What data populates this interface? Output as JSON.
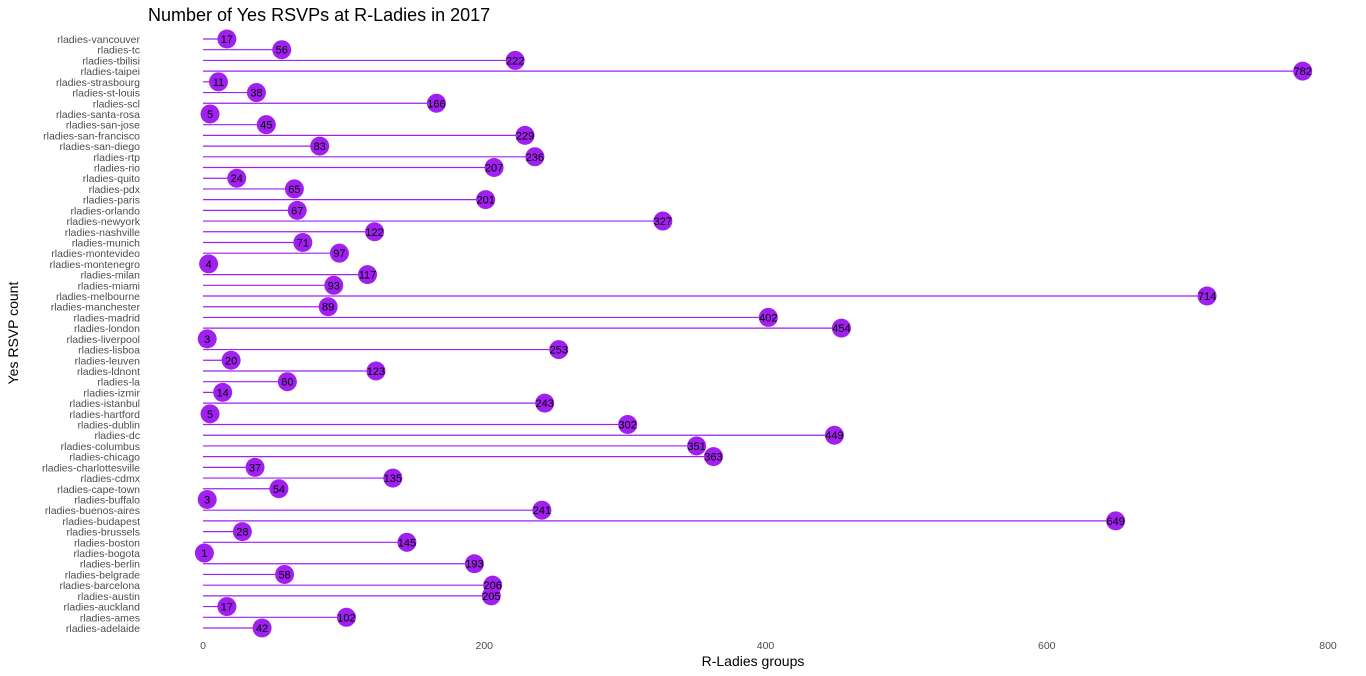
{
  "chart_data": {
    "type": "lollipop",
    "title": "Number of Yes RSVPs at R-Ladies in 2017",
    "xlabel": "R-Ladies groups",
    "ylabel": "Yes RSVP count",
    "xlim": [
      0,
      800
    ],
    "xticks": [
      "0",
      "200",
      "400",
      "600",
      "800"
    ],
    "xtick_values": [
      0,
      200,
      400,
      600,
      800
    ],
    "grid": false,
    "colors": {
      "stem": "#a020f0",
      "dot": "#a020f0",
      "label": "#000000"
    },
    "categories": [
      "rladies-vancouver",
      "rladies-tc",
      "rladies-tbilisi",
      "rladies-taipei",
      "rladies-strasbourg",
      "rladies-st-louis",
      "rladies-scl",
      "rladies-santa-rosa",
      "rladies-san-jose",
      "rladies-san-francisco",
      "rladies-san-diego",
      "rladies-rtp",
      "rladies-rio",
      "rladies-quito",
      "rladies-pdx",
      "rladies-paris",
      "rladies-orlando",
      "rladies-newyork",
      "rladies-nashville",
      "rladies-munich",
      "rladies-montevideo",
      "rladies-montenegro",
      "rladies-milan",
      "rladies-miami",
      "rladies-melbourne",
      "rladies-manchester",
      "rladies-madrid",
      "rladies-london",
      "rladies-liverpool",
      "rladies-lisboa",
      "rladies-leuven",
      "rladies-ldnont",
      "rladies-la",
      "rladies-izmir",
      "rladies-istanbul",
      "rladies-hartford",
      "rladies-dublin",
      "rladies-dc",
      "rladies-columbus",
      "rladies-chicago",
      "rladies-charlottesville",
      "rladies-cdmx",
      "rladies-cape-town",
      "rladies-buffalo",
      "rladies-buenos-aires",
      "rladies-budapest",
      "rladies-brussels",
      "rladies-boston",
      "rladies-bogota",
      "rladies-berlin",
      "rladies-belgrade",
      "rladies-barcelona",
      "rladies-austin",
      "rladies-auckland",
      "rladies-ames",
      "rladies-adelaide"
    ],
    "values": [
      17,
      56,
      222,
      782,
      11,
      38,
      166,
      5,
      45,
      229,
      83,
      236,
      207,
      24,
      65,
      201,
      67,
      327,
      122,
      71,
      97,
      4,
      117,
      93,
      714,
      89,
      402,
      454,
      3,
      253,
      20,
      123,
      60,
      14,
      243,
      5,
      302,
      449,
      351,
      363,
      37,
      135,
      54,
      3,
      241,
      649,
      28,
      145,
      1,
      193,
      58,
      206,
      205,
      17,
      102,
      42
    ]
  }
}
